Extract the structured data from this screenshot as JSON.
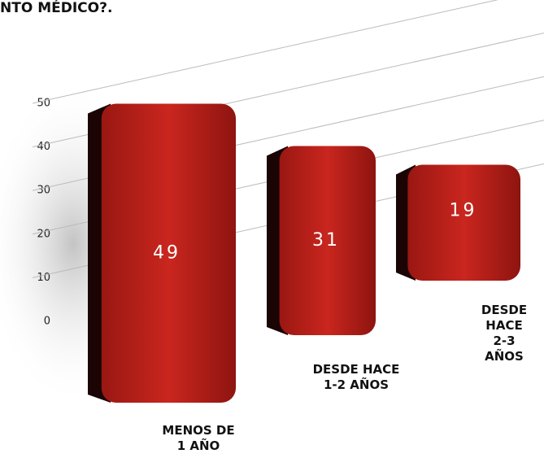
{
  "chart_data": {
    "type": "bar3d",
    "title": "NTO MÉDICO?.",
    "categories": [
      "MENOS DE\n1 AÑO",
      "DESDE HACE\n1-2 AÑOS",
      "DESDE HACE\n2-3 AÑOS"
    ],
    "values": [
      49,
      31,
      19
    ],
    "color": "#b8221c",
    "ylim": [
      0,
      50
    ],
    "yticks": [
      0,
      10,
      20,
      30,
      40,
      50
    ],
    "grid": true
  }
}
